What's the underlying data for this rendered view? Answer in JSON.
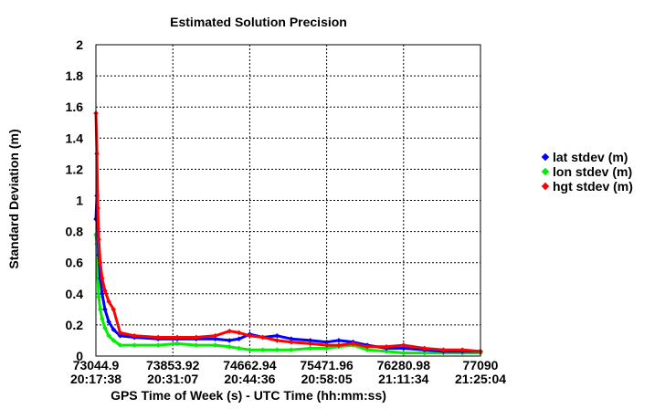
{
  "chart_data": {
    "type": "scatter",
    "title": "Estimated Solution Precision",
    "xlabel": "GPS Time of Week (s) - UTC Time (hh:mm:ss)",
    "ylabel": "Standard Deviation (m)",
    "xlim": [
      73044.9,
      77090
    ],
    "ylim": [
      0,
      2
    ],
    "grid": true,
    "legend_position": "right",
    "x_ticks": [
      {
        "value": 73044.9,
        "label": "73044.9",
        "sublabel": "20:17:38"
      },
      {
        "value": 73853.92,
        "label": "73853.92",
        "sublabel": "20:31:07"
      },
      {
        "value": 74662.94,
        "label": "74662.94",
        "sublabel": "20:44:36"
      },
      {
        "value": 75471.96,
        "label": "75471.96",
        "sublabel": "20:58:05"
      },
      {
        "value": 76280.98,
        "label": "76280.98",
        "sublabel": "21:11:34"
      },
      {
        "value": 77090,
        "label": "77090",
        "sublabel": "21:25:04"
      }
    ],
    "y_ticks": [
      {
        "value": 0,
        "label": "0"
      },
      {
        "value": 0.2,
        "label": "0.2"
      },
      {
        "value": 0.4,
        "label": "0.4"
      },
      {
        "value": 0.6,
        "label": "0.6"
      },
      {
        "value": 0.8,
        "label": "0.8"
      },
      {
        "value": 1,
        "label": "1"
      },
      {
        "value": 1.2,
        "label": "1.2"
      },
      {
        "value": 1.4,
        "label": "1.4"
      },
      {
        "value": 1.6,
        "label": "1.6"
      },
      {
        "value": 1.8,
        "label": "1.8"
      },
      {
        "value": 2,
        "label": "2"
      }
    ],
    "series": [
      {
        "name": "lat stdev (m)",
        "color": "#0000ff",
        "x": [
          73044.9,
          73055,
          73065,
          73075,
          73090,
          73110,
          73140,
          73180,
          73230,
          73300,
          73450,
          73700,
          73900,
          74100,
          74300,
          74450,
          74550,
          74662.94,
          74800,
          74950,
          75100,
          75300,
          75471.96,
          75600,
          75750,
          75900,
          76100,
          76280.98,
          76500,
          76700,
          76900,
          77090
        ],
        "y": [
          0.88,
          1.03,
          0.82,
          0.65,
          0.5,
          0.4,
          0.3,
          0.22,
          0.17,
          0.13,
          0.12,
          0.11,
          0.11,
          0.11,
          0.11,
          0.1,
          0.11,
          0.14,
          0.12,
          0.13,
          0.11,
          0.1,
          0.09,
          0.1,
          0.09,
          0.07,
          0.05,
          0.05,
          0.04,
          0.03,
          0.03,
          0.03
        ]
      },
      {
        "name": "lon stdev (m)",
        "color": "#00ee00",
        "x": [
          73044.9,
          73055,
          73065,
          73075,
          73090,
          73110,
          73140,
          73180,
          73230,
          73300,
          73450,
          73700,
          73900,
          74100,
          74300,
          74450,
          74550,
          74662.94,
          74800,
          74950,
          75100,
          75300,
          75471.96,
          75600,
          75750,
          75900,
          76100,
          76280.98,
          76500,
          76700,
          76900,
          77090
        ],
        "y": [
          0.78,
          0.72,
          0.5,
          0.38,
          0.3,
          0.24,
          0.18,
          0.13,
          0.1,
          0.07,
          0.07,
          0.07,
          0.08,
          0.07,
          0.07,
          0.06,
          0.05,
          0.04,
          0.04,
          0.04,
          0.04,
          0.05,
          0.05,
          0.06,
          0.07,
          0.04,
          0.03,
          0.02,
          0.02,
          0.02,
          0.02,
          0.02
        ]
      },
      {
        "name": "hgt stdev (m)",
        "color": "#ff0000",
        "x": [
          73044.9,
          73055,
          73065,
          73075,
          73090,
          73110,
          73140,
          73180,
          73230,
          73300,
          73450,
          73700,
          73900,
          74100,
          74300,
          74450,
          74550,
          74662.94,
          74800,
          74950,
          75100,
          75300,
          75471.96,
          75600,
          75750,
          75900,
          76100,
          76280.98,
          76500,
          76700,
          76900,
          77090
        ],
        "y": [
          1.56,
          1.3,
          0.95,
          0.75,
          0.6,
          0.5,
          0.42,
          0.35,
          0.3,
          0.15,
          0.13,
          0.12,
          0.12,
          0.12,
          0.13,
          0.16,
          0.15,
          0.13,
          0.12,
          0.1,
          0.09,
          0.08,
          0.07,
          0.07,
          0.08,
          0.06,
          0.06,
          0.07,
          0.05,
          0.04,
          0.04,
          0.03
        ]
      }
    ]
  }
}
